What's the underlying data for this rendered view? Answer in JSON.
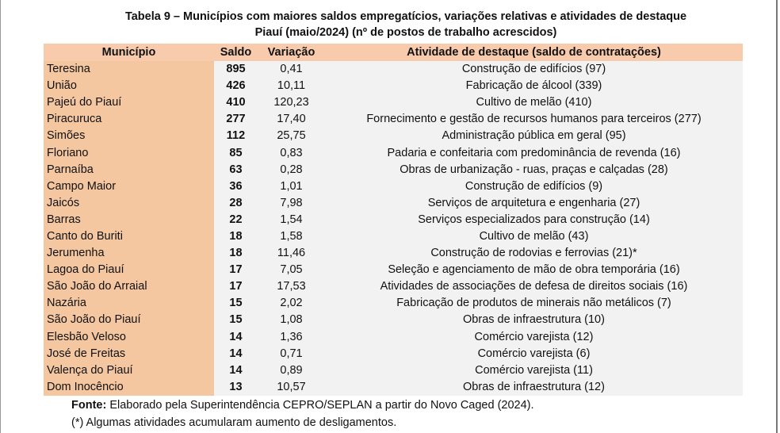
{
  "title": {
    "line1": "Tabela 9 – Municípios com maiores saldos empregatícios, variações relativas e atividades de destaque",
    "line2": "Piauí (maio/2024) (nº de postos de trabalho acrescidos)"
  },
  "table": {
    "header": [
      "Município",
      "Saldo",
      "Variação",
      "Atividade de destaque (saldo de contratações)"
    ],
    "rows": [
      [
        "Teresina",
        "895",
        "0,41",
        "Construção de edifícios (97)"
      ],
      [
        "União",
        "426",
        "10,11",
        "Fabricação de álcool (339)"
      ],
      [
        "Pajeú do Piauí",
        "410",
        "120,23",
        "Cultivo de melão (410)"
      ],
      [
        "Piracuruca",
        "277",
        "17,40",
        "Fornecimento e gestão de recursos humanos para terceiros (277)"
      ],
      [
        "Simões",
        "112",
        "25,75",
        "Administração pública em geral (95)"
      ],
      [
        "Floriano",
        "85",
        "0,83",
        "Padaria e confeitaria com predominância de revenda (16)"
      ],
      [
        "Parnaíba",
        "63",
        "0,28",
        "Obras de urbanização - ruas, praças e calçadas (28)"
      ],
      [
        "Campo Maior",
        "36",
        "1,01",
        "Construção de edifícios (9)"
      ],
      [
        "Jaicós",
        "28",
        "7,98",
        "Serviços de arquitetura e engenharia (27)"
      ],
      [
        "Barras",
        "22",
        "1,54",
        "Serviços especializados para construção (14)"
      ],
      [
        "Canto do Buriti",
        "18",
        "1,58",
        "Cultivo de melão (43)"
      ],
      [
        "Jerumenha",
        "18",
        "11,46",
        "Construção de rodovias e ferrovias (21)*"
      ],
      [
        "Lagoa do Piauí",
        "17",
        "7,05",
        "Seleção e agenciamento de mão de obra temporária (16)"
      ],
      [
        "São João do Arraial",
        "17",
        "17,53",
        "Atividades de associações de defesa de direitos sociais (16)"
      ],
      [
        "Nazária",
        "15",
        "2,02",
        "Fabricação de produtos de minerais não metálicos (7)"
      ],
      [
        "São João do Piauí",
        "15",
        "1,08",
        "Obras de infraestrutura (10)"
      ],
      [
        "Elesbão Veloso",
        "14",
        "1,36",
        "Comércio varejista (12)"
      ],
      [
        "José de Freitas",
        "14",
        "0,71",
        "Comércio varejista (6)"
      ],
      [
        "Valença do Piauí",
        "14",
        "0,89",
        "Comércio varejista (11)"
      ],
      [
        "Dom Inocêncio",
        "13",
        "10,57",
        "Obras de infraestrutura (12)"
      ]
    ]
  },
  "footer": {
    "source_label": "Fonte:",
    "source_text": "Elaborado pela Superintendência CEPRO/SEPLAN a partir do Novo Caged (2024).",
    "note": "(*) Algumas atividades acumularam aumento de desligamentos."
  }
}
